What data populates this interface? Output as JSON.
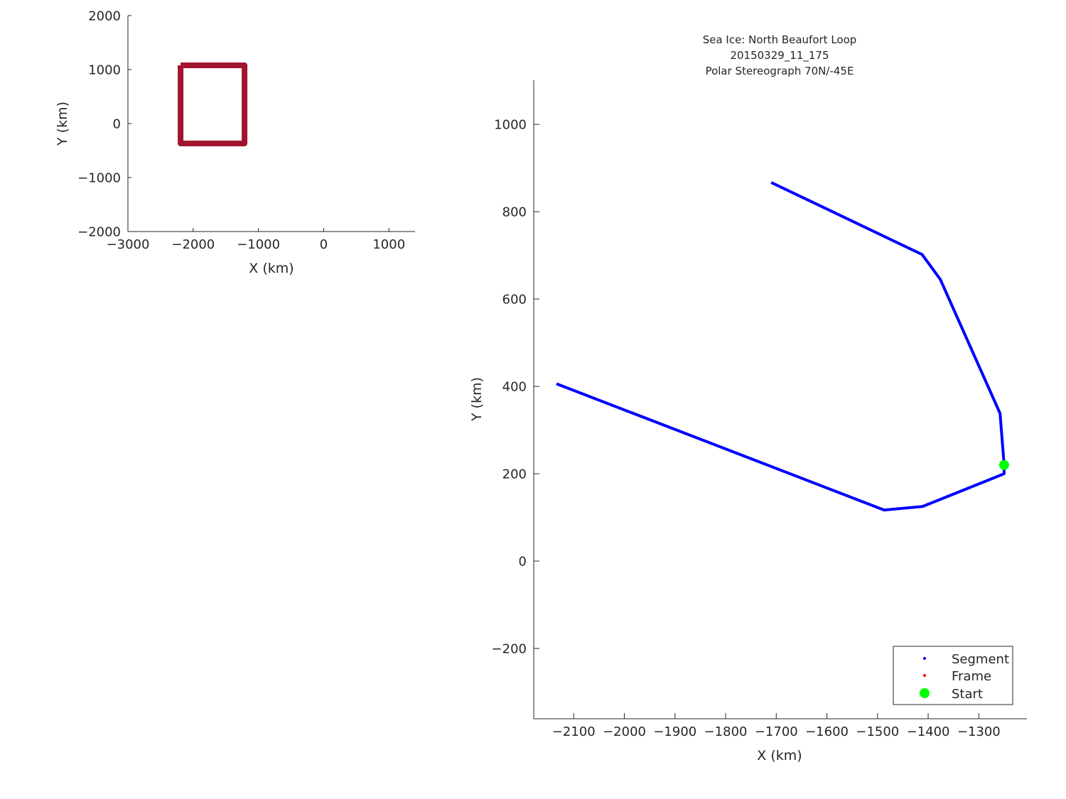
{
  "chart_data": [
    {
      "type": "line",
      "xlabel": "X (km)",
      "ylabel": "Y (km)",
      "xlim": [
        -3000,
        1400
      ],
      "ylim": [
        -2000,
        2000
      ],
      "xticks": [
        -3000,
        -2000,
        -1000,
        0,
        1000
      ],
      "yticks": [
        -2000,
        -1000,
        0,
        1000,
        2000
      ],
      "grid": false,
      "series": [
        {
          "color": "#a2142f",
          "x": [
            -2193,
            -1213,
            -1213,
            -2193,
            -2193
          ],
          "y": [
            1079,
            1079,
            -368,
            -368,
            1079
          ]
        }
      ]
    },
    {
      "type": "line",
      "title": [
        "Sea Ice: North Beaufort Loop",
        "20150329_11_175",
        "Polar Stereograph 70N/-45E"
      ],
      "xlabel": "X (km)",
      "ylabel": "Y (km)",
      "xlim": [
        -2179,
        -1205
      ],
      "ylim": [
        -361,
        1101
      ],
      "xticks": [
        -2100,
        -2000,
        -1900,
        -1800,
        -1700,
        -1600,
        -1500,
        -1400,
        -1300
      ],
      "yticks": [
        -200,
        0,
        200,
        400,
        600,
        800,
        1000
      ],
      "grid": false,
      "legend_position": "bottom-right",
      "series": [
        {
          "name": "Segment",
          "color": "#0000ff",
          "x": [
            -2134,
            -1487,
            -1411,
            -1250,
            -1250,
            -1258,
            -1376,
            -1412,
            -1710
          ],
          "y": [
            406,
            117,
            125,
            200,
            220,
            338,
            645,
            702,
            867
          ]
        },
        {
          "name": "Frame",
          "color": "#ff0000",
          "x": [],
          "y": []
        },
        {
          "name": "Start",
          "color": "#00ff00",
          "x": [
            -1250
          ],
          "y": [
            220
          ]
        }
      ]
    }
  ]
}
